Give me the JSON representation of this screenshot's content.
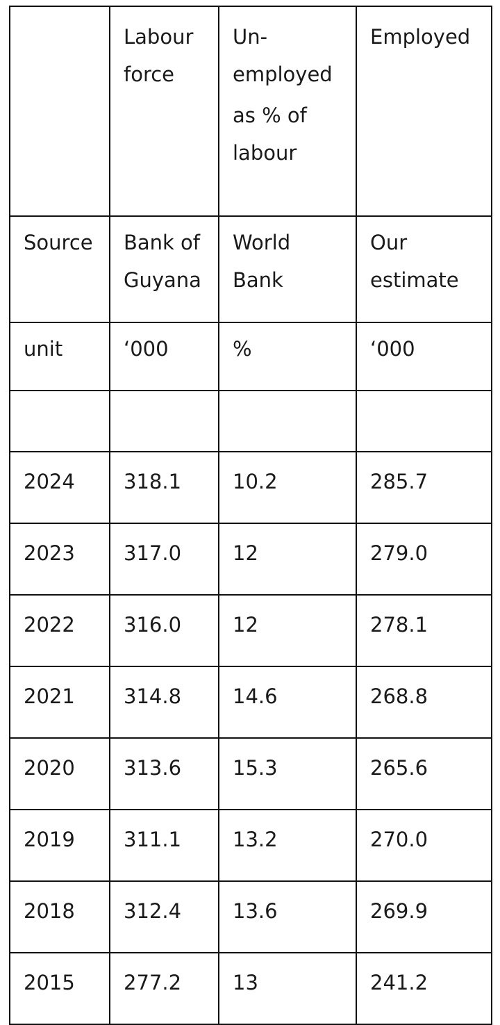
{
  "table": {
    "header": {
      "c0": "",
      "c1": [
        "Labour",
        "force"
      ],
      "c2": [
        "Un-",
        "employed",
        "as % of",
        "labour"
      ],
      "c3": [
        "Employed"
      ]
    },
    "source_row": {
      "label": "Source",
      "c1": [
        "Bank of",
        "Guyana"
      ],
      "c2": [
        "World",
        "Bank"
      ],
      "c3": [
        "Our",
        "estimate"
      ]
    },
    "unit_row": {
      "label": "unit",
      "c1": "‘000",
      "c2": "%",
      "c3": "‘000"
    },
    "rows": [
      {
        "year": "2024",
        "labour_force": "318.1",
        "unemployed_pct": "10.2",
        "employed": "285.7"
      },
      {
        "year": "2023",
        "labour_force": "317.0",
        "unemployed_pct": "12",
        "employed": "279.0"
      },
      {
        "year": "2022",
        "labour_force": "316.0",
        "unemployed_pct": "12",
        "employed": "278.1"
      },
      {
        "year": "2021",
        "labour_force": "314.8",
        "unemployed_pct": "14.6",
        "employed": "268.8"
      },
      {
        "year": "2020",
        "labour_force": "313.6",
        "unemployed_pct": "15.3",
        "employed": "265.6"
      },
      {
        "year": "2019",
        "labour_force": "311.1",
        "unemployed_pct": "13.2",
        "employed": "270.0"
      },
      {
        "year": "2018",
        "labour_force": "312.4",
        "unemployed_pct": "13.6",
        "employed": "269.9"
      },
      {
        "year": "2015",
        "labour_force": "277.2",
        "unemployed_pct": "13",
        "employed": "241.2"
      }
    ]
  }
}
